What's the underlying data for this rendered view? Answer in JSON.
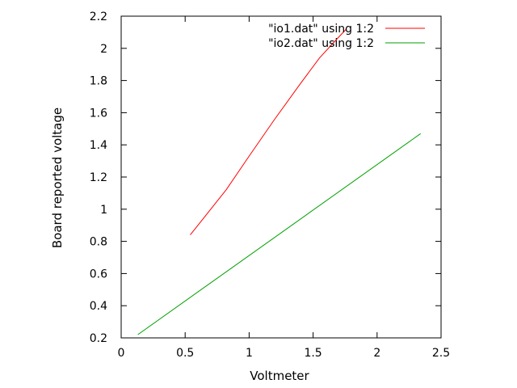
{
  "chart_data": {
    "type": "line",
    "title": "",
    "xlabel": "Voltmeter",
    "ylabel": "Board reported voltage",
    "xlim": [
      0,
      2.5
    ],
    "ylim": [
      0.2,
      2.2
    ],
    "xticks": [
      "0",
      "0.5",
      "1",
      "1.5",
      "2",
      "2.5"
    ],
    "yticks": [
      "0.2",
      "0.4",
      "0.6",
      "0.8",
      "1",
      "1.2",
      "1.4",
      "1.6",
      "1.8",
      "2",
      "2.2"
    ],
    "grid": false,
    "legend_position": "top-right",
    "series": [
      {
        "name": "\"io1.dat\" using 1:2",
        "color": "#ff0000",
        "x": [
          0.54,
          0.82,
          1.0,
          1.2,
          1.4,
          1.55,
          1.7,
          1.76
        ],
        "y": [
          0.84,
          1.12,
          1.33,
          1.56,
          1.78,
          1.94,
          2.07,
          2.12
        ]
      },
      {
        "name": "\"io2.dat\" using 1:2",
        "color": "#00a000",
        "x": [
          0.13,
          2.34
        ],
        "y": [
          0.22,
          1.47
        ]
      }
    ]
  }
}
